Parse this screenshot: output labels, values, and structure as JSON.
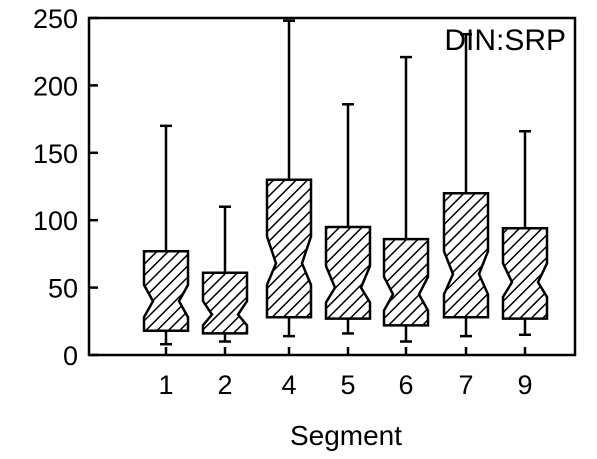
{
  "chart_data": {
    "type": "boxplot",
    "annotation": "DIN:SRP",
    "xlabel": "Segment",
    "ylabel": "",
    "ylim": [
      0,
      250
    ],
    "yticks": [
      0,
      50,
      100,
      150,
      200,
      250
    ],
    "notched": true,
    "fill_pattern": "diagonal-hatch",
    "color": "#000000",
    "categories": [
      "1",
      "2",
      "4",
      "5",
      "6",
      "7",
      "9"
    ],
    "boxes": [
      {
        "label": "1",
        "min": 8,
        "q1": 18,
        "median": 40,
        "q3": 77,
        "max": 170,
        "notch_low": 28,
        "notch_high": 52
      },
      {
        "label": "2",
        "min": 10,
        "q1": 16,
        "median": 30,
        "q3": 61,
        "max": 110,
        "notch_low": 22,
        "notch_high": 40
      },
      {
        "label": "4",
        "min": 14,
        "q1": 28,
        "median": 68,
        "q3": 130,
        "max": 248,
        "notch_low": 52,
        "notch_high": 88
      },
      {
        "label": "5",
        "min": 16,
        "q1": 27,
        "median": 50,
        "q3": 95,
        "max": 186,
        "notch_low": 39,
        "notch_high": 66
      },
      {
        "label": "6",
        "min": 10,
        "q1": 22,
        "median": 45,
        "q3": 86,
        "max": 221,
        "notch_low": 33,
        "notch_high": 58
      },
      {
        "label": "7",
        "min": 14,
        "q1": 28,
        "median": 60,
        "q3": 120,
        "max": 238,
        "notch_low": 45,
        "notch_high": 77
      },
      {
        "label": "9",
        "min": 15,
        "q1": 27,
        "median": 54,
        "q3": 94,
        "max": 166,
        "notch_low": 43,
        "notch_high": 68
      }
    ]
  }
}
